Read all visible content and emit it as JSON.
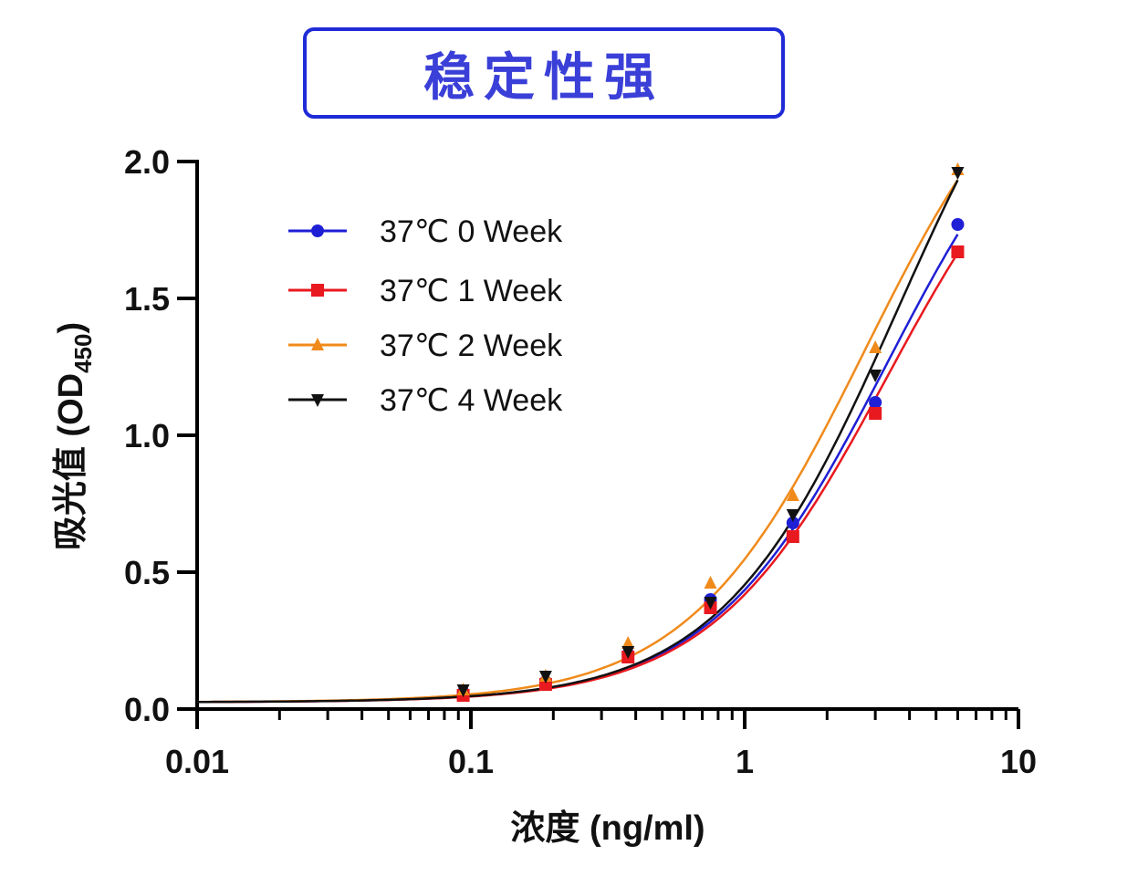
{
  "title": "稳定性强",
  "chart_data": {
    "type": "line",
    "title": "稳定性强",
    "xlabel": "浓度 (ng/ml)",
    "ylabel_main": "吸光值 (OD",
    "ylabel_sub": "450",
    "ylabel_end": ")",
    "x_scale": "log",
    "xlim": [
      0.01,
      10
    ],
    "ylim": [
      0,
      2.0
    ],
    "x_ticks": [
      {
        "value": 0.01,
        "label": "0.01"
      },
      {
        "value": 0.1,
        "label": "0.1"
      },
      {
        "value": 1,
        "label": "1"
      },
      {
        "value": 10,
        "label": "10"
      }
    ],
    "y_ticks": [
      {
        "value": 0.0,
        "label": "0.0"
      },
      {
        "value": 0.5,
        "label": "0.5"
      },
      {
        "value": 1.0,
        "label": "1.0"
      },
      {
        "value": 1.5,
        "label": "1.5"
      },
      {
        "value": 2.0,
        "label": "2.0"
      }
    ],
    "legend_position": "top-left",
    "grid": false,
    "x": [
      0.09375,
      0.1875,
      0.375,
      0.75,
      1.5,
      3,
      6
    ],
    "series": [
      {
        "name": "37℃ 0 Week",
        "color": "#1f1fd6",
        "marker": "circle",
        "values": [
          0.06,
          0.1,
          0.2,
          0.4,
          0.68,
          1.12,
          1.77
        ]
      },
      {
        "name": "37℃ 1 Week",
        "color": "#e8191f",
        "marker": "square",
        "values": [
          0.05,
          0.09,
          0.19,
          0.37,
          0.63,
          1.08,
          1.67
        ]
      },
      {
        "name": "37℃ 2 Week",
        "color": "#f08a1a",
        "marker": "triangle-up",
        "values": [
          0.07,
          0.12,
          0.24,
          0.46,
          0.78,
          1.32,
          1.97
        ]
      },
      {
        "name": "37℃ 4 Week",
        "color": "#111111",
        "marker": "triangle-down",
        "values": [
          0.07,
          0.12,
          0.21,
          0.39,
          0.71,
          1.22,
          1.96
        ]
      }
    ]
  }
}
